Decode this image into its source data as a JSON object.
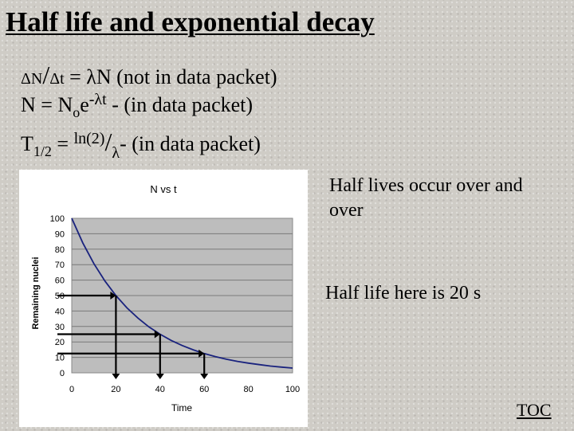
{
  "title": "Half life and exponential decay",
  "equations": {
    "eq1": {
      "delta_n": "ΔN",
      "slash": "/",
      "delta_t": "Δt",
      "rest": " = λN (not in data packet)"
    },
    "eq2": {
      "n_eq": "N = N",
      "sub_o": "o",
      "e": "e",
      "exp": "-λt",
      "rest": " - (in data packet)"
    },
    "eq3": {
      "t": "T",
      "sub_half": "1/2",
      "eq": " = ",
      "ln2": "ln(2)",
      "slash": "/",
      "lambda": "λ",
      "rest": "- (in data packet)"
    }
  },
  "notes": {
    "half_lives": "Half lives occur over and over",
    "half_life_value": "Half life here is 20 s"
  },
  "toc_link": "TOC",
  "colors": {
    "curve": "#1a237e",
    "plot_bg": "#bdbdbd",
    "arrows": "#000000"
  },
  "chart_data": {
    "type": "line",
    "title": "N vs t",
    "xlabel": "Time",
    "ylabel": "Remaining nuclei",
    "xlim": [
      0,
      100
    ],
    "ylim": [
      0,
      100
    ],
    "xticks": [
      0,
      20,
      40,
      60,
      80,
      100
    ],
    "yticks": [
      0,
      10,
      20,
      30,
      40,
      50,
      60,
      70,
      80,
      90,
      100
    ],
    "grid": true,
    "legend": "none",
    "series": [
      {
        "x": [
          0,
          5,
          10,
          15,
          20,
          25,
          30,
          35,
          40,
          45,
          50,
          55,
          60,
          65,
          70,
          75,
          80,
          85,
          90,
          95,
          100
        ],
        "y": [
          100,
          84.1,
          70.7,
          59.5,
          50,
          42,
          35.4,
          29.7,
          25,
          21,
          17.7,
          14.9,
          12.5,
          10.5,
          8.8,
          7.4,
          6.3,
          5.3,
          4.4,
          3.7,
          3.1
        ]
      }
    ],
    "annotations": [
      {
        "x": 20,
        "y": 50
      },
      {
        "x": 40,
        "y": 25
      },
      {
        "x": 60,
        "y": 12.5
      }
    ]
  }
}
